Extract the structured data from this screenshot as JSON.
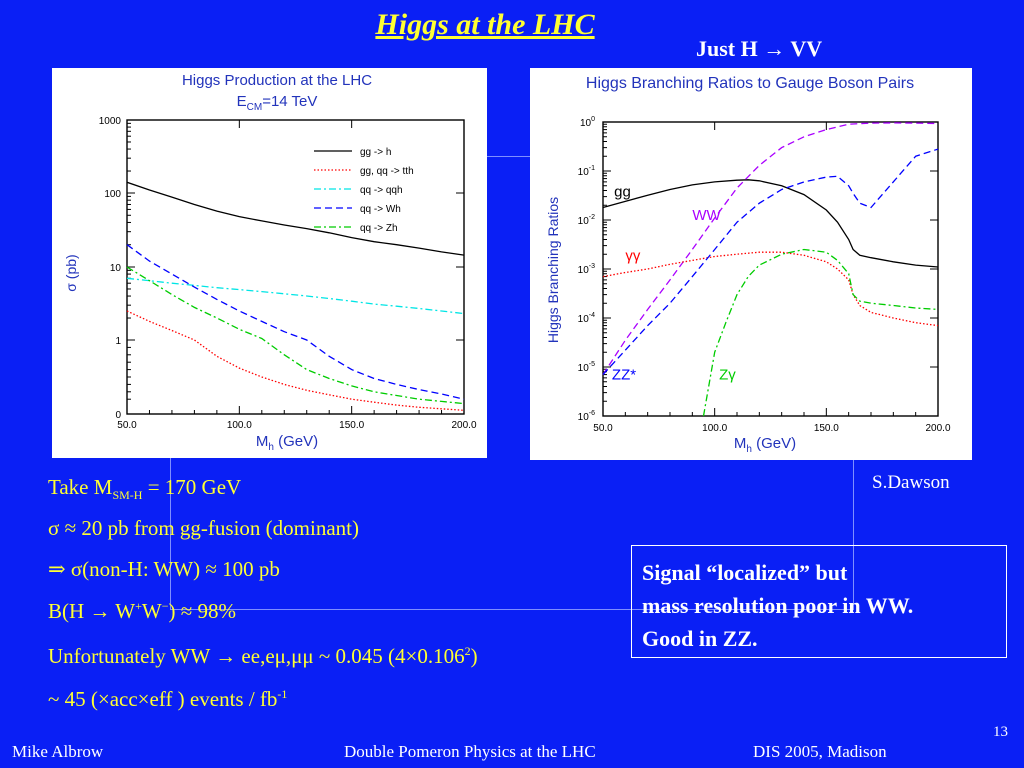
{
  "slide": {
    "title": "Higgs at the LHC",
    "subtitle": "Just H → VV",
    "credit": "S.Dawson",
    "page_number": "13",
    "footer_left": "Mike Albrow",
    "footer_center": "Double Pomeron Physics  at the LHC",
    "footer_right": "DIS 2005, Madison"
  },
  "text": {
    "line1_a": "Take M",
    "line1_sub": "SM-H",
    "line1_b": " = 170 GeV",
    "line2": "σ ≈ 20 pb from gg-fusion (dominant)",
    "line3": "⇒  σ(non-H: WW)  ≈  100 pb",
    "line4_a": "B(H → W",
    "line4_sup1": "+",
    "line4_b": "W",
    "line4_sup2": "−",
    "line4_c": ") ≈  98%",
    "line5_a": "Unfortunately WW → ee,eμ,μμ ~ 0.045 (4×0.106",
    "line5_sup": "2",
    "line5_b": ")",
    "line6_a": "~ 45 (×acc×eff ) events / fb",
    "line6_sup": "-1"
  },
  "signal": {
    "line1": "Signal “localized” but",
    "line2": "mass resolution poor in WW.",
    "line3": "Good in ZZ."
  },
  "chart_data": [
    {
      "type": "line",
      "title": "Higgs Production at the LHC",
      "subtitle": "E_CM=14 TeV",
      "xlabel": "M_h (GeV)",
      "ylabel": "σ (pb)",
      "xlim": [
        50,
        200
      ],
      "ylim": [
        0,
        1000
      ],
      "yscale": "log",
      "xticks": [
        "50.0",
        "100.0",
        "150.0",
        "200.0"
      ],
      "yticks": [
        "0",
        "1",
        "10",
        "100",
        "1000"
      ],
      "legend_position": "top-right",
      "series": [
        {
          "name": "gg -> h",
          "color": "#000000",
          "dash": "solid",
          "x": [
            50,
            60,
            70,
            80,
            90,
            100,
            110,
            120,
            130,
            140,
            150,
            160,
            170,
            180,
            190,
            200
          ],
          "y": [
            140,
            110,
            88,
            70,
            57,
            48,
            42,
            37,
            33,
            29,
            25,
            22,
            20,
            18,
            16,
            14.5
          ]
        },
        {
          "name": "gg, qq -> tth",
          "color": "#ff0000",
          "dash": "dotted",
          "x": [
            50,
            60,
            70,
            80,
            90,
            100,
            110,
            120,
            130,
            140,
            150,
            160,
            170,
            180,
            190,
            200
          ],
          "y": [
            2.5,
            1.8,
            1.35,
            1.0,
            0.78,
            0.62,
            0.5,
            0.4,
            0.32,
            0.26,
            0.2,
            0.16,
            0.12,
            0.09,
            0.07,
            0.05
          ]
        },
        {
          "name": "qq -> qqh",
          "color": "#00e5e5",
          "dash": "dashdot",
          "x": [
            50,
            60,
            70,
            80,
            90,
            100,
            110,
            120,
            130,
            140,
            150,
            160,
            170,
            180,
            190,
            200
          ],
          "y": [
            7.0,
            6.5,
            6.0,
            5.6,
            5.2,
            4.9,
            4.6,
            4.3,
            4.0,
            3.7,
            3.4,
            3.1,
            2.9,
            2.7,
            2.5,
            2.3
          ]
        },
        {
          "name": "qq -> Wh",
          "color": "#0000ff",
          "dash": "dashed",
          "x": [
            50,
            60,
            70,
            80,
            90,
            100,
            110,
            120,
            130,
            140,
            150,
            160,
            170,
            180,
            190,
            200
          ],
          "y": [
            20,
            12,
            8,
            5.3,
            3.6,
            2.5,
            1.8,
            1.3,
            1.0,
            0.78,
            0.6,
            0.48,
            0.4,
            0.33,
            0.27,
            0.2
          ]
        },
        {
          "name": "qq -> Zh",
          "color": "#00cc00",
          "dash": "dashdot",
          "x": [
            50,
            60,
            70,
            80,
            90,
            100,
            110,
            120,
            130,
            140,
            150,
            160,
            170,
            180,
            190,
            200
          ],
          "y": [
            10,
            6.5,
            4.2,
            2.8,
            2.0,
            1.4,
            1.05,
            0.8,
            0.6,
            0.48,
            0.38,
            0.3,
            0.25,
            0.2,
            0.17,
            0.14
          ]
        }
      ]
    },
    {
      "type": "line",
      "title": "Higgs Branching Ratios to Gauge Boson Pairs",
      "xlabel": "M_h (GeV)",
      "ylabel": "Higgs Branching Ratios",
      "xlim": [
        50,
        200
      ],
      "ylim": [
        1e-06,
        1
      ],
      "yscale": "log",
      "xticks": [
        "50.0",
        "100.0",
        "150.0",
        "200.0"
      ],
      "yticks": [
        "10^-6",
        "10^-5",
        "10^-4",
        "10^-3",
        "10^-2",
        "10^-1",
        "10^0"
      ],
      "curve_labels": [
        "gg",
        "WW",
        "γγ",
        "ZZ*",
        "Zγ"
      ],
      "series": [
        {
          "name": "gg",
          "color": "#000000",
          "dash": "solid",
          "x": [
            50,
            60,
            70,
            80,
            90,
            100,
            110,
            115,
            120,
            130,
            140,
            150,
            155,
            160,
            162,
            165,
            170,
            180,
            190,
            200
          ],
          "y": [
            0.018,
            0.024,
            0.032,
            0.042,
            0.052,
            0.06,
            0.065,
            0.066,
            0.063,
            0.05,
            0.033,
            0.016,
            0.009,
            0.004,
            0.0025,
            0.0019,
            0.0017,
            0.0014,
            0.0012,
            0.0011
          ]
        },
        {
          "name": "WW",
          "color": "#aa00ff",
          "dash": "dashed",
          "x": [
            50,
            60,
            70,
            80,
            90,
            100,
            110,
            120,
            130,
            140,
            150,
            160,
            170,
            180,
            190,
            200
          ],
          "y": [
            7e-06,
            3.5e-05,
            0.00015,
            0.0006,
            0.0025,
            0.011,
            0.045,
            0.13,
            0.3,
            0.5,
            0.7,
            0.9,
            0.95,
            0.96,
            0.95,
            0.93
          ]
        },
        {
          "name": "γγ",
          "color": "#ff0000",
          "dash": "dotted",
          "x": [
            50,
            60,
            70,
            80,
            90,
            100,
            110,
            120,
            130,
            140,
            150,
            155,
            160,
            162,
            165,
            170,
            180,
            190,
            200
          ],
          "y": [
            0.0007,
            0.00085,
            0.001,
            0.00125,
            0.0015,
            0.0018,
            0.002,
            0.0022,
            0.0022,
            0.0019,
            0.0014,
            0.001,
            0.0006,
            0.0003,
            0.00018,
            0.00013,
            0.0001,
            8e-05,
            7e-05
          ]
        },
        {
          "name": "ZZ*",
          "color": "#0000ff",
          "dash": "dashed",
          "x": [
            50,
            60,
            70,
            80,
            90,
            100,
            110,
            120,
            130,
            140,
            150,
            155,
            160,
            162,
            165,
            170,
            180,
            190,
            200
          ],
          "y": [
            7e-06,
            2.2e-05,
            7e-05,
            0.0002,
            0.0007,
            0.0025,
            0.009,
            0.022,
            0.042,
            0.06,
            0.075,
            0.078,
            0.05,
            0.035,
            0.022,
            0.018,
            0.06,
            0.2,
            0.28
          ]
        },
        {
          "name": "Zγ",
          "color": "#00cc00",
          "dash": "dashdot",
          "x": [
            95,
            100,
            105,
            110,
            115,
            120,
            130,
            140,
            150,
            155,
            160,
            162,
            165,
            170,
            180,
            190,
            200
          ],
          "y": [
            1e-06,
            2e-05,
            8e-05,
            0.0003,
            0.0007,
            0.0012,
            0.002,
            0.0025,
            0.0022,
            0.0015,
            0.0008,
            0.0003,
            0.00022,
            0.0002,
            0.00018,
            0.00016,
            0.00015
          ]
        }
      ]
    }
  ]
}
